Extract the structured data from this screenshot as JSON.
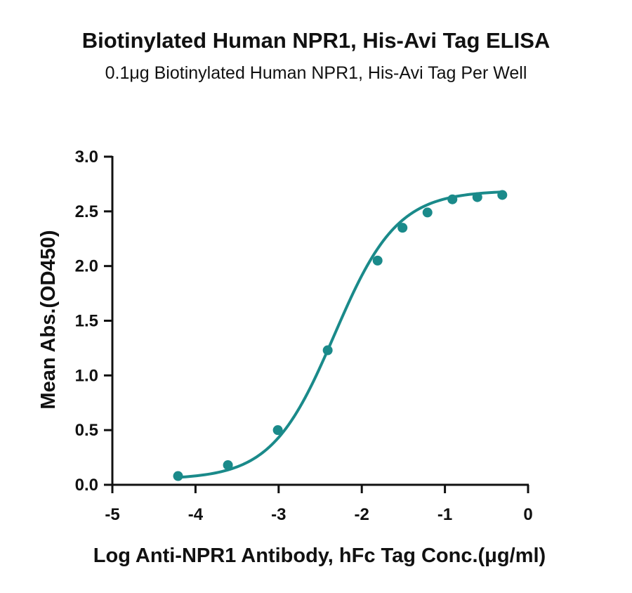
{
  "chart_data": {
    "type": "line",
    "title": "Biotinylated Human NPR1, His-Avi Tag ELISA",
    "subtitle": "0.1μg Biotinylated Human NPR1, His-Avi Tag Per Well",
    "xlabel": "Log Anti-NPR1 Antibody, hFc Tag Conc.(μg/ml)",
    "ylabel": "Mean Abs.(OD450)",
    "xlim": [
      -5,
      0
    ],
    "ylim": [
      0,
      3.0
    ],
    "x_ticks": [
      "-5",
      "-4",
      "-3",
      "-2",
      "-1",
      "0"
    ],
    "y_ticks": [
      "0.0",
      "0.5",
      "1.0",
      "1.5",
      "2.0",
      "2.5",
      "3.0"
    ],
    "grid": false,
    "series_color": "#1a8a8a",
    "points": {
      "x": [
        -4.21,
        -3.61,
        -3.01,
        -2.41,
        -1.81,
        -1.51,
        -1.21,
        -0.91,
        -0.61,
        -0.31
      ],
      "y": [
        0.08,
        0.18,
        0.5,
        1.23,
        2.05,
        2.35,
        2.49,
        2.61,
        2.63,
        2.65
      ]
    },
    "fit_curve": {
      "type": "4PL",
      "bottom": 0.05,
      "top": 2.69,
      "log_ec50": -2.33,
      "hill_slope": 1.15
    }
  }
}
